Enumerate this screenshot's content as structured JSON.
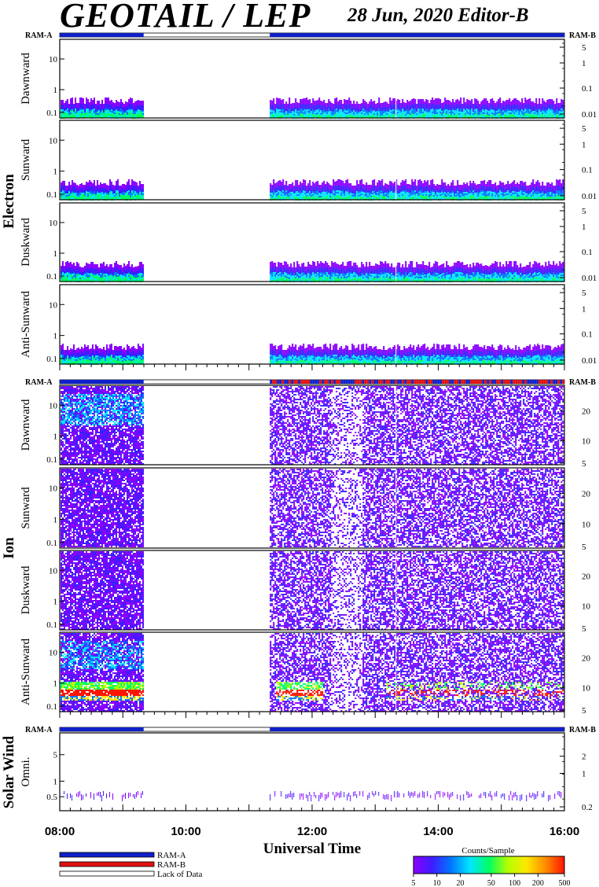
{
  "header": {
    "title": "GEOTAIL / LEP",
    "date": "28 Jun, 2020   Editor-B"
  },
  "ram_labels": {
    "left": "RAM-A",
    "right": "RAM-B"
  },
  "groups": [
    {
      "name": "Electron",
      "panels": [
        "Dawnward",
        "Sunward",
        "Duskward",
        "Anti-Sunward"
      ]
    },
    {
      "name": "Ion",
      "panels": [
        "Dawnward",
        "Sunward",
        "Duskward",
        "Anti-Sunward"
      ]
    },
    {
      "name": "Solar Wind",
      "panels": [
        "Omni."
      ]
    }
  ],
  "x_axis": {
    "label": "Universal Time",
    "ticks": [
      "08:00",
      "10:00",
      "12:00",
      "14:00",
      "16:00"
    ],
    "range_hours": [
      8,
      16
    ]
  },
  "legend": {
    "items": [
      {
        "label": "RAM-A",
        "color": "#1020c8"
      },
      {
        "label": "RAM-B",
        "color": "#e01010"
      },
      {
        "label": "Lack of Data",
        "color": "#ffffff"
      }
    ]
  },
  "colorbar": {
    "title": "Counts/Sample",
    "ticks": [
      "5",
      "10",
      "20",
      "50",
      "100",
      "200",
      "500"
    ]
  },
  "chart_data": {
    "type": "heatmap",
    "data_gap_hours": [
      9.33,
      11.33
    ],
    "panels": [
      {
        "group": "Electron",
        "label": "Dawnward",
        "left_ticks": [
          "10",
          "1",
          "0.1"
        ],
        "right_ticks": [
          "5",
          "1",
          "0.1",
          "0.01"
        ]
      },
      {
        "group": "Electron",
        "label": "Sunward",
        "left_ticks": [
          "10",
          "1",
          "0.1"
        ],
        "right_ticks": [
          "5",
          "1",
          "0.1",
          "0.01"
        ]
      },
      {
        "group": "Electron",
        "label": "Duskward",
        "left_ticks": [
          "10",
          "1",
          "0.1"
        ],
        "right_ticks": [
          "5",
          "1",
          "0.1",
          "0.01"
        ]
      },
      {
        "group": "Electron",
        "label": "Anti-Sunward",
        "left_ticks": [
          "10",
          "1",
          "0.1"
        ],
        "right_ticks": [
          "5",
          "1",
          "0.1",
          "0.01"
        ]
      },
      {
        "group": "Ion",
        "label": "Dawnward",
        "left_ticks": [
          "10",
          "1",
          "0.1"
        ],
        "right_ticks": [
          "20",
          "10",
          "5"
        ]
      },
      {
        "group": "Ion",
        "label": "Sunward",
        "left_ticks": [
          "10",
          "1",
          "0.1"
        ],
        "right_ticks": [
          "20",
          "10",
          "5"
        ]
      },
      {
        "group": "Ion",
        "label": "Duskward",
        "left_ticks": [
          "10",
          "1",
          "0.1"
        ],
        "right_ticks": [
          "20",
          "10",
          "5"
        ]
      },
      {
        "group": "Ion",
        "label": "Anti-Sunward",
        "left_ticks": [
          "10",
          "1",
          "0.1"
        ],
        "right_ticks": [
          "20",
          "10",
          "5"
        ]
      },
      {
        "group": "Solar Wind",
        "label": "Omni.",
        "left_ticks": [
          "5",
          "1",
          "0.5"
        ],
        "right_ticks": [
          "2",
          "1",
          "0.2"
        ]
      }
    ]
  },
  "colors": {
    "ram_a": "#1020c8",
    "ram_b": "#e01010",
    "colormap": [
      "#8b00ff",
      "#3c1eff",
      "#0078ff",
      "#00e6ff",
      "#00ff64",
      "#b4ff00",
      "#ffe600",
      "#ff8c00",
      "#ff1400"
    ]
  }
}
